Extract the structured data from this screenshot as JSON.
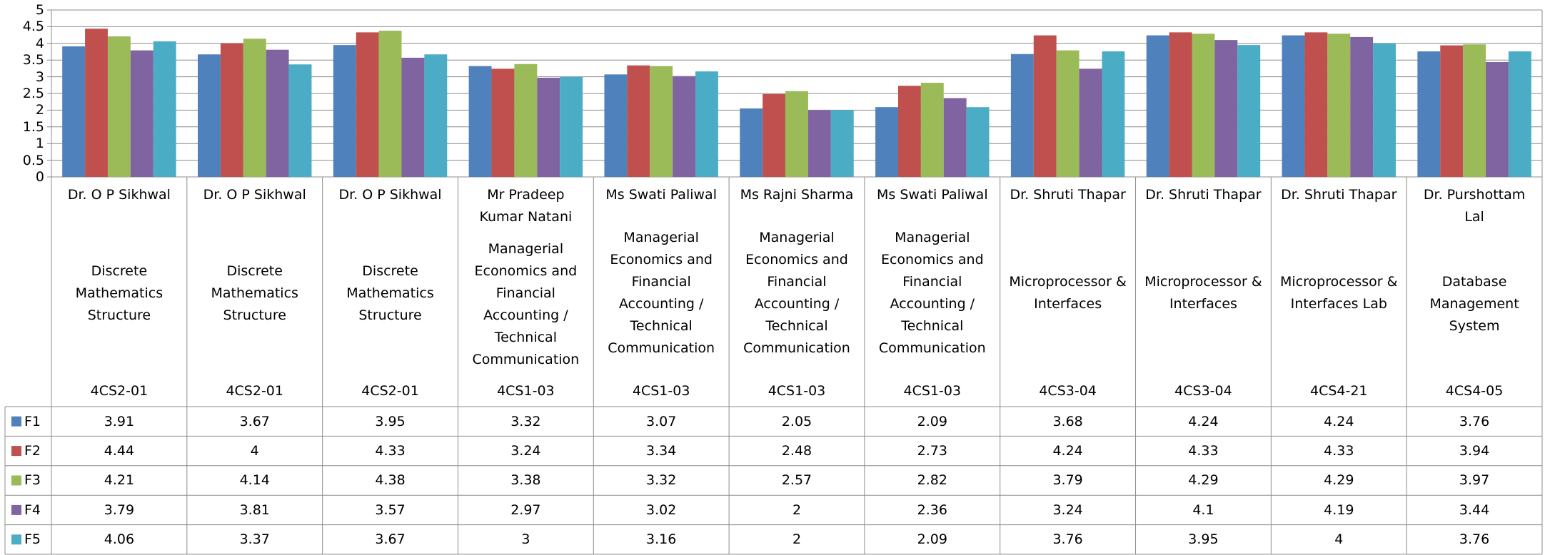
{
  "chart_data": {
    "type": "bar",
    "categories": [
      {
        "teacher": "Dr. O P Sikhwal",
        "subject": "Discrete Mathematics Structure",
        "code": "4CS2-01"
      },
      {
        "teacher": "Dr. O P Sikhwal",
        "subject": "Discrete Mathematics Structure",
        "code": "4CS2-01"
      },
      {
        "teacher": "Dr. O P Sikhwal",
        "subject": "Discrete Mathematics Structure",
        "code": "4CS2-01"
      },
      {
        "teacher": "Mr Pradeep Kumar Natani",
        "subject": "Managerial Economics and Financial Accounting / Technical Communication",
        "code": "4CS1-03"
      },
      {
        "teacher": "Ms Swati Paliwal",
        "subject": "Managerial Economics and Financial Accounting / Technical Communication",
        "code": "4CS1-03"
      },
      {
        "teacher": "Ms Rajni Sharma",
        "subject": "Managerial Economics and Financial Accounting / Technical Communication",
        "code": "4CS1-03"
      },
      {
        "teacher": "Ms Swati Paliwal",
        "subject": "Managerial Economics and Financial Accounting / Technical Communication",
        "code": "4CS1-03"
      },
      {
        "teacher": "Dr. Shruti Thapar",
        "subject": "Microprocessor & Interfaces",
        "code": "4CS3-04"
      },
      {
        "teacher": "Dr. Shruti Thapar",
        "subject": "Microprocessor & Interfaces",
        "code": "4CS3-04"
      },
      {
        "teacher": "Dr. Shruti Thapar",
        "subject": "Microprocessor & Interfaces Lab",
        "code": "4CS4-21"
      },
      {
        "teacher": "Dr. Purshottam Lal",
        "subject": "Database Management System",
        "code": "4CS4-05"
      }
    ],
    "series": [
      {
        "name": "F1",
        "color": "#4f81bd",
        "values": [
          3.91,
          3.67,
          3.95,
          3.32,
          3.07,
          2.05,
          2.09,
          3.68,
          4.24,
          4.24,
          3.76
        ]
      },
      {
        "name": "F2",
        "color": "#c0504d",
        "values": [
          4.44,
          4,
          4.33,
          3.24,
          3.34,
          2.48,
          2.73,
          4.24,
          4.33,
          4.33,
          3.94
        ]
      },
      {
        "name": "F3",
        "color": "#9bbb59",
        "values": [
          4.21,
          4.14,
          4.38,
          3.38,
          3.32,
          2.57,
          2.82,
          3.79,
          4.29,
          4.29,
          3.97
        ]
      },
      {
        "name": "F4",
        "color": "#8064a2",
        "values": [
          3.79,
          3.81,
          3.57,
          2.97,
          3.02,
          2,
          2.36,
          3.24,
          4.1,
          4.19,
          3.44
        ]
      },
      {
        "name": "F5",
        "color": "#4bacc6",
        "values": [
          4.06,
          3.37,
          3.67,
          3,
          3.16,
          2,
          2.09,
          3.76,
          3.95,
          4,
          3.76
        ]
      }
    ],
    "ylim": [
      0,
      5
    ],
    "yticks": [
      0,
      0.5,
      1,
      1.5,
      2,
      2.5,
      3,
      3.5,
      4,
      4.5,
      5
    ],
    "grid": true
  }
}
